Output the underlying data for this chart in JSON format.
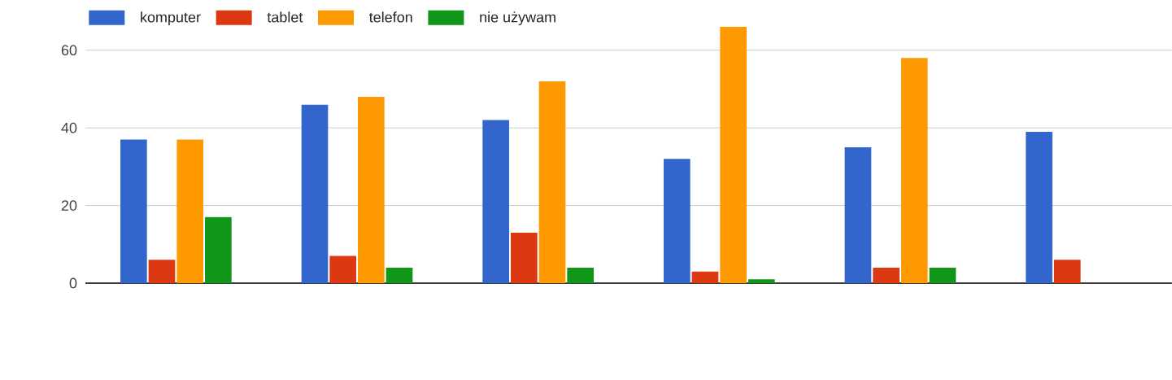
{
  "chart_data": {
    "type": "bar",
    "categories": [
      null,
      null,
      null,
      null,
      null,
      null
    ],
    "series": [
      {
        "name": "komputer",
        "color": "#3366cc",
        "values": [
          37,
          46,
          42,
          32,
          35,
          39
        ]
      },
      {
        "name": "tablet",
        "color": "#dc3912",
        "values": [
          6,
          7,
          13,
          3,
          4,
          6
        ]
      },
      {
        "name": "telefon",
        "color": "#ff9900",
        "values": [
          37,
          48,
          52,
          66,
          58,
          null
        ]
      },
      {
        "name": "nie używam",
        "color": "#109618",
        "values": [
          17,
          4,
          4,
          1,
          4,
          null
        ]
      }
    ],
    "ylim": [
      0,
      70
    ],
    "yticks": [
      0,
      20,
      40,
      60
    ],
    "grid": "y",
    "legend": "top left"
  }
}
